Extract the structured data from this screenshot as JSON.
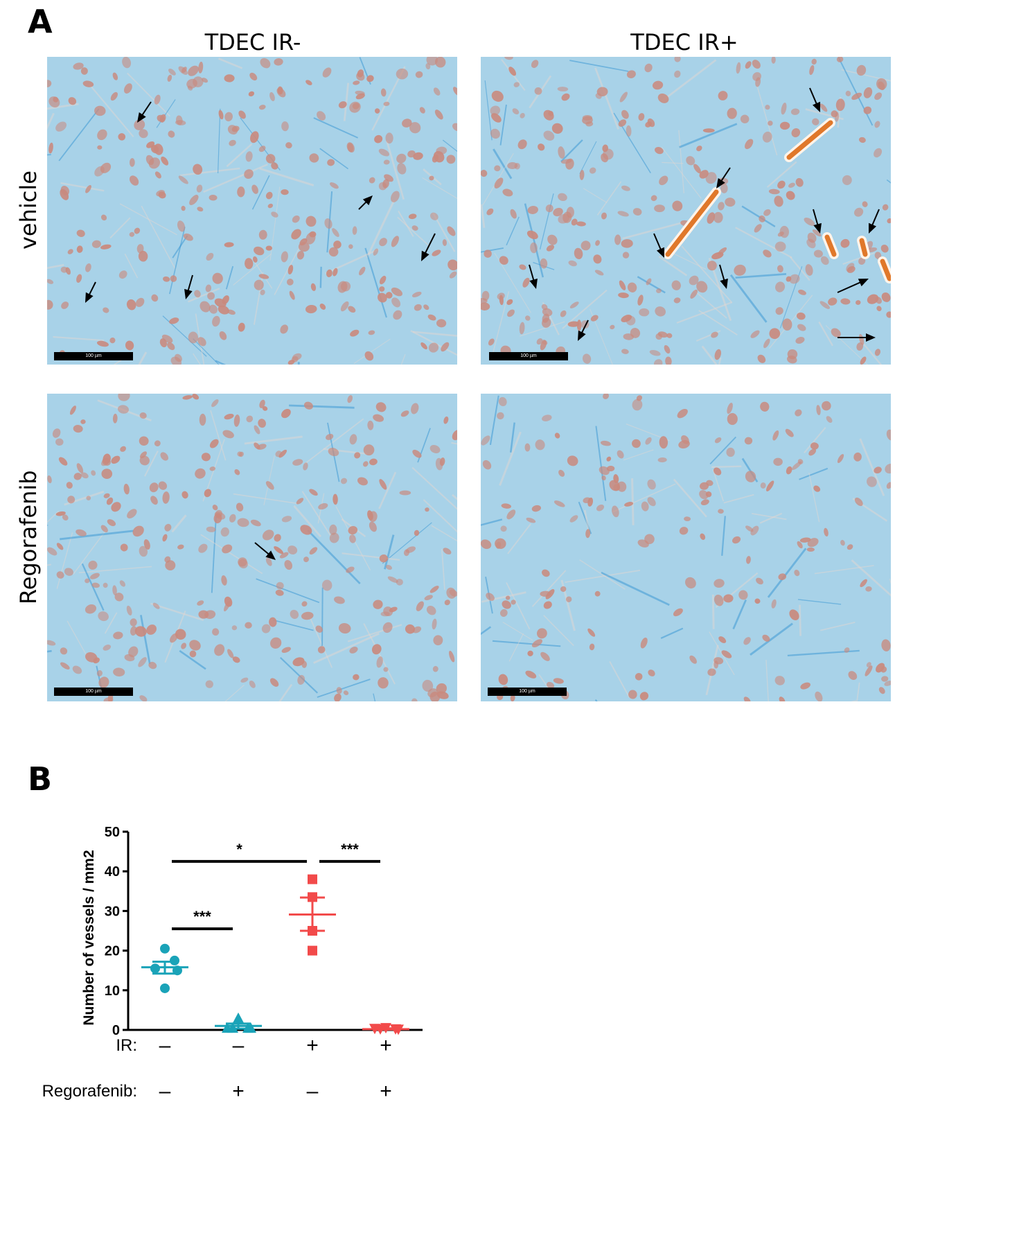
{
  "panel_a": {
    "label": "A",
    "columns": [
      "TDEC IR-",
      "TDEC IR+"
    ],
    "rows": [
      "vehicle",
      "Regorafenib"
    ],
    "scale_bar_label": "100 µm",
    "micrographs": [
      {
        "name": "micrograph-vehicle-ir-neg",
        "arrow_count": 5
      },
      {
        "name": "micrograph-vehicle-ir-pos",
        "arrow_count": 10
      },
      {
        "name": "micrograph-regorafenib-ir-neg",
        "arrow_count": 1
      },
      {
        "name": "micrograph-regorafenib-ir-pos",
        "arrow_count": 0
      }
    ],
    "colors": {
      "background": "#a8d2e8",
      "nuclei": "#c98a7e",
      "vessel": "#e0782a",
      "fibers": "#2a8fd0"
    }
  },
  "panel_b": {
    "label": "B"
  },
  "chart_data": {
    "type": "scatter",
    "ylabel": "Number of vessels / mm2",
    "ylim": [
      0,
      50
    ],
    "yticks": [
      0,
      10,
      20,
      30,
      40,
      50
    ],
    "ir_label": "IR:",
    "regorafenib_label": "Regorafenib:",
    "groups": [
      {
        "ir": "–",
        "regorafenib": "–",
        "marker": "circle",
        "color": "#1aa3b8",
        "values": [
          20.5,
          17.5,
          15.5,
          15.0,
          10.5
        ],
        "mean": 15.8,
        "sem_low": 14.2,
        "sem_high": 17.2
      },
      {
        "ir": "–",
        "regorafenib": "+",
        "marker": "triangle-up",
        "color": "#1aa3b8",
        "values": [
          3.0,
          0.5,
          0.5,
          0.5,
          0.5
        ],
        "mean": 1.0,
        "sem_low": 0.3,
        "sem_high": 1.6
      },
      {
        "ir": "+",
        "regorafenib": "–",
        "marker": "square",
        "color": "#f24a4a",
        "values": [
          38.0,
          33.5,
          25.0,
          20.0
        ],
        "mean": 29.1,
        "sem_low": 25.0,
        "sem_high": 33.4
      },
      {
        "ir": "+",
        "regorafenib": "+",
        "marker": "triangle-down",
        "color": "#f24a4a",
        "values": [
          0.5,
          0.3,
          0.2,
          0.2,
          0.1
        ],
        "mean": 0.2,
        "sem_low": 0.1,
        "sem_high": 0.4
      }
    ],
    "significance": [
      {
        "from": 0,
        "to": 1,
        "label": "***",
        "y": 25.5
      },
      {
        "from": 0,
        "to": 2,
        "label": "*",
        "y": 42.5
      },
      {
        "from": 2,
        "to": 3,
        "label": "***",
        "y": 42.5
      }
    ]
  }
}
